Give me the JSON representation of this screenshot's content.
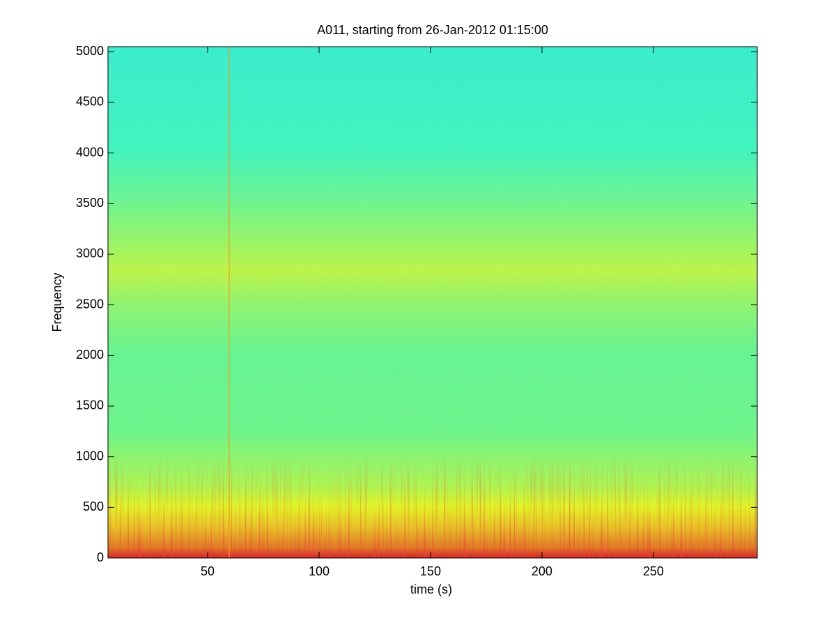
{
  "chart_data": {
    "type": "spectrogram",
    "title": "A011, starting from 26-Jan-2012 01:15:00",
    "x_label": "time (s)",
    "y_label": "Frequency",
    "xlim": [
      5.3,
      296.6
    ],
    "xticks": [
      50,
      100,
      150,
      200,
      250
    ],
    "ylim": [
      0,
      5050
    ],
    "yticks": [
      0,
      500,
      1000,
      1500,
      2000,
      2500,
      3000,
      3500,
      4000,
      4500,
      5000
    ],
    "colormap": "jet"
  }
}
